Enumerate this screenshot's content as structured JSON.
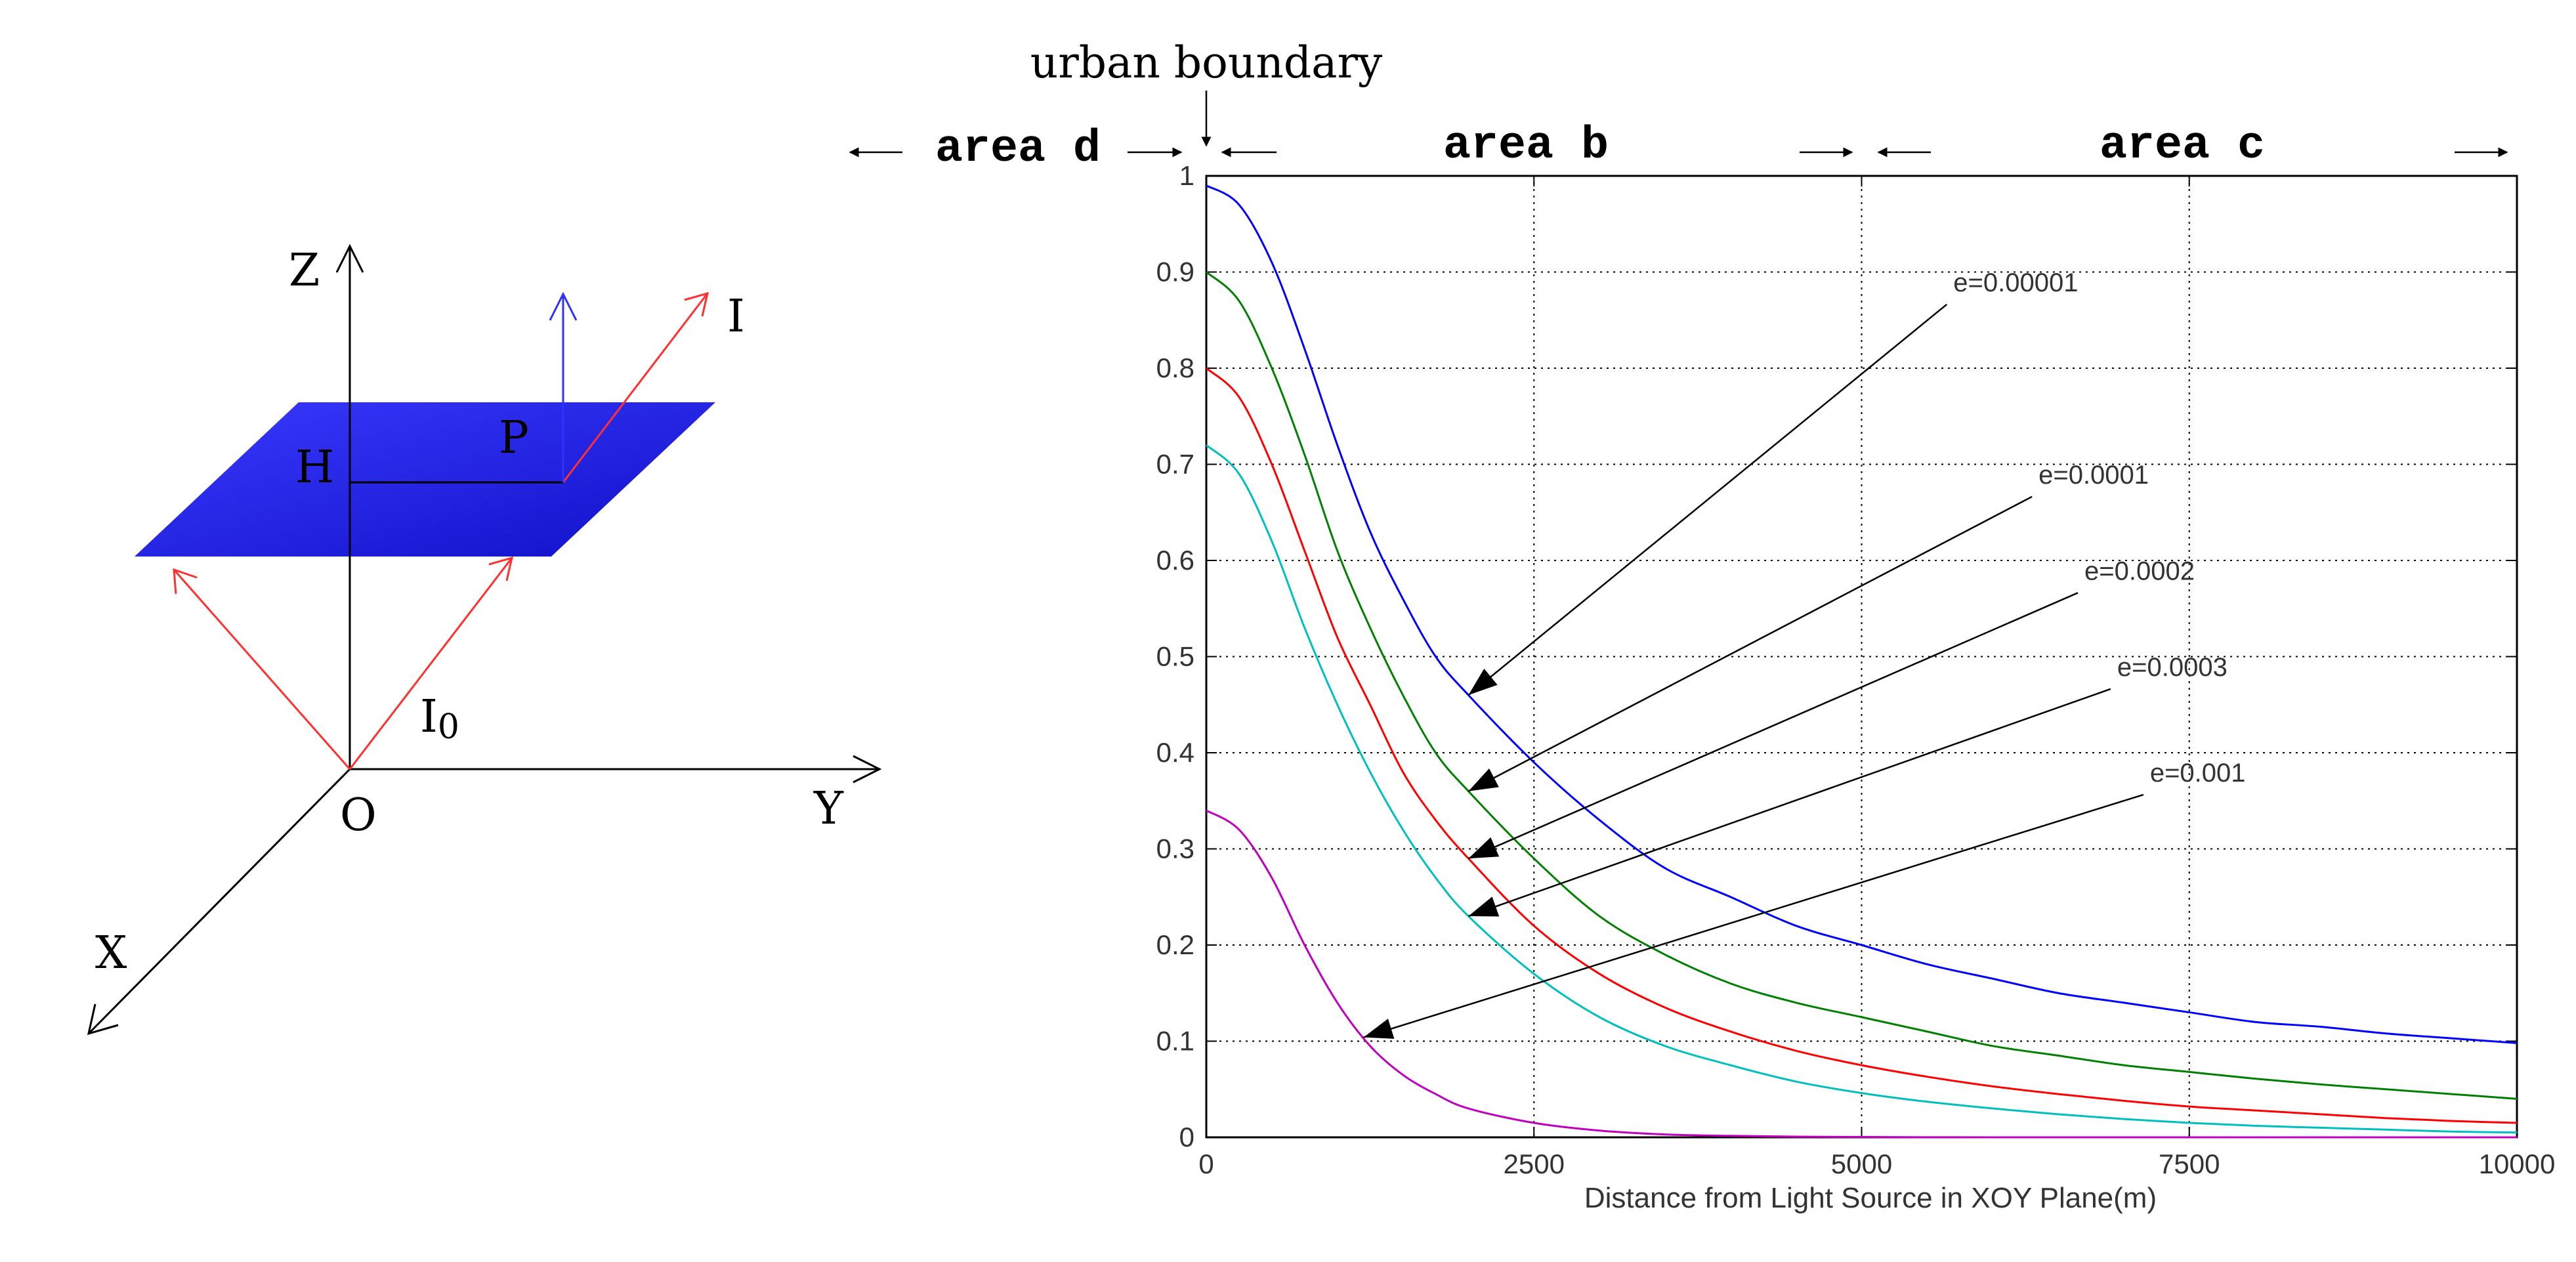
{
  "diagram": {
    "axis_z": "Z",
    "axis_y": "Y",
    "axis_x": "X",
    "origin": "O",
    "point_h": "H",
    "point_p": "P",
    "ray_i": "I",
    "ray_i0": "I",
    "ray_i0_sub": "0",
    "plane_color": "#1f1fe0",
    "ray_color": "#ff3030",
    "normal_color": "#3030ff"
  },
  "annotations": {
    "urban_boundary": "urban boundary",
    "area_d": "area d",
    "area_b": "area b",
    "area_c": "area c"
  },
  "chart_data": {
    "type": "line",
    "xlabel": "Distance from Light Source in  XOY  Plane(m)",
    "ylabel": "",
    "xlim": [
      0,
      10000
    ],
    "ylim": [
      0,
      1
    ],
    "xticks": [
      "0",
      "2500",
      "5000",
      "7500",
      "10000"
    ],
    "xtick_values": [
      0,
      2500,
      5000,
      7500,
      10000
    ],
    "yticks": [
      "0",
      "0.1",
      "0.2",
      "0.3",
      "0.4",
      "0.5",
      "0.6",
      "0.7",
      "0.8",
      "0.9",
      "1"
    ],
    "ytick_values": [
      0,
      0.1,
      0.2,
      0.3,
      0.4,
      0.5,
      0.6,
      0.7,
      0.8,
      0.9,
      1
    ],
    "grid": true,
    "x": [
      0,
      250,
      500,
      750,
      1000,
      1250,
      1500,
      1750,
      2000,
      2500,
      3000,
      3500,
      4000,
      4500,
      5000,
      5500,
      6000,
      6500,
      7000,
      7500,
      8000,
      8500,
      9000,
      9500,
      10000
    ],
    "series": [
      {
        "name": "e=0.00001",
        "color": "#0000ff",
        "values": [
          0.99,
          0.97,
          0.91,
          0.82,
          0.72,
          0.63,
          0.56,
          0.5,
          0.46,
          0.39,
          0.33,
          0.28,
          0.25,
          0.22,
          0.2,
          0.18,
          0.165,
          0.15,
          0.14,
          0.13,
          0.12,
          0.115,
          0.108,
          0.103,
          0.098
        ]
      },
      {
        "name": "e=0.0001",
        "color": "#008000",
        "values": [
          0.9,
          0.87,
          0.8,
          0.71,
          0.61,
          0.53,
          0.46,
          0.4,
          0.36,
          0.29,
          0.23,
          0.19,
          0.16,
          0.14,
          0.125,
          0.11,
          0.095,
          0.085,
          0.075,
          0.068,
          0.061,
          0.055,
          0.05,
          0.045,
          0.04
        ]
      },
      {
        "name": "e=0.0002",
        "color": "#ff0000",
        "values": [
          0.8,
          0.77,
          0.7,
          0.61,
          0.52,
          0.45,
          0.38,
          0.33,
          0.29,
          0.22,
          0.17,
          0.135,
          0.11,
          0.09,
          0.075,
          0.063,
          0.053,
          0.045,
          0.038,
          0.032,
          0.028,
          0.024,
          0.02,
          0.017,
          0.015
        ]
      },
      {
        "name": "e=0.0003",
        "color": "#00bfbf",
        "values": [
          0.72,
          0.69,
          0.62,
          0.53,
          0.45,
          0.38,
          0.32,
          0.27,
          0.23,
          0.17,
          0.125,
          0.095,
          0.075,
          0.058,
          0.046,
          0.037,
          0.03,
          0.024,
          0.019,
          0.015,
          0.012,
          0.01,
          0.008,
          0.006,
          0.005
        ]
      },
      {
        "name": "e=0.001",
        "color": "#bf00bf",
        "values": [
          0.34,
          0.32,
          0.27,
          0.2,
          0.14,
          0.095,
          0.065,
          0.045,
          0.03,
          0.015,
          0.007,
          0.003,
          0.0015,
          0.0007,
          0.0003,
          0.0001,
          0,
          0,
          0,
          0,
          0,
          0,
          0,
          0,
          0
        ]
      }
    ],
    "callouts": [
      {
        "label": "e=0.00001",
        "series": 0,
        "at_x": 2000,
        "label_x": 5700,
        "label_y": 0.88
      },
      {
        "label": "e=0.0001",
        "series": 1,
        "at_x": 2000,
        "label_x": 6350,
        "label_y": 0.68
      },
      {
        "label": "e=0.0002",
        "series": 2,
        "at_x": 2000,
        "label_x": 6700,
        "label_y": 0.58
      },
      {
        "label": "e=0.0003",
        "series": 3,
        "at_x": 2000,
        "label_x": 6950,
        "label_y": 0.48
      },
      {
        "label": "e=0.001",
        "series": 4,
        "at_x": 1200,
        "label_x": 7200,
        "label_y": 0.37
      }
    ]
  }
}
